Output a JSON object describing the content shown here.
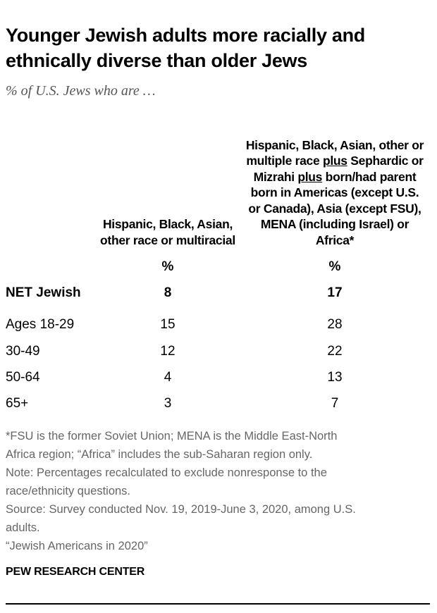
{
  "title": "Younger Jewish adults more racially and ethnically diverse than older Jews",
  "subtitle": "% of U.S. Jews who are …",
  "chart_data": {
    "type": "table",
    "columns": [
      {
        "header": "Hispanic, Black, Asian, other race or multiracial",
        "unit": "%"
      },
      {
        "header_parts": [
          "Hispanic, Black, Asian, other or multiple race ",
          "plus",
          " Sephardic or Mizrahi ",
          "plus",
          " born/had parent born in Americas (except U.S. or Canada), Asia (except FSU), MENA (including Israel) or Africa*"
        ],
        "unit": "%"
      }
    ],
    "rows": [
      {
        "label": "NET Jewish",
        "values": [
          "8",
          "17"
        ],
        "bold": true
      },
      {
        "label": "Ages 18-29",
        "values": [
          "15",
          "28"
        ]
      },
      {
        "label": "30-49",
        "values": [
          "12",
          "22"
        ]
      },
      {
        "label": "50-64",
        "values": [
          "4",
          "13"
        ]
      },
      {
        "label": "65+",
        "values": [
          "3",
          "7"
        ]
      }
    ]
  },
  "notes": [
    "*FSU is the former Soviet Union; MENA is the Middle East-North",
    "Africa region; “Africa” includes the sub-Saharan region only.",
    "Note: Percentages recalculated to exclude nonresponse to the",
    "race/ethnicity questions.",
    "Source: Survey conducted Nov. 19, 2019-June 3, 2020, among U.S.",
    "adults.",
    "“Jewish Americans in 2020”"
  ],
  "logo": "PEW RESEARCH CENTER"
}
